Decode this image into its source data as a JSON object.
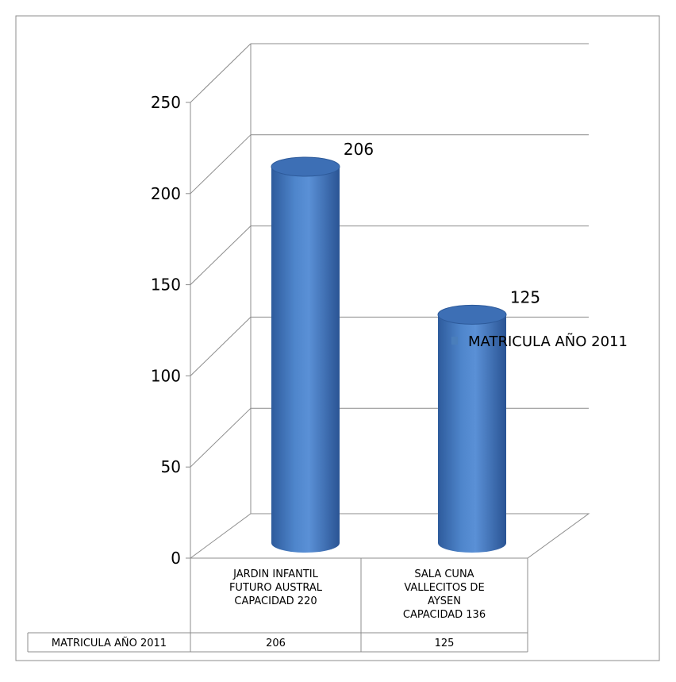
{
  "chart_data": {
    "type": "bar",
    "style": "3d-cylinder",
    "categories": [
      [
        "JARDIN INFANTIL",
        "FUTURO AUSTRAL",
        "CAPACIDAD 220"
      ],
      [
        "SALA CUNA",
        "VALLECITOS DE",
        "AYSEN",
        "CAPACIDAD 136"
      ]
    ],
    "series": [
      {
        "name": "MATRICULA AÑO 2011",
        "values": [
          206,
          125
        ],
        "color": "#4a7ebb"
      }
    ],
    "data_labels": [
      "206",
      "125"
    ],
    "ylim": [
      0,
      250
    ],
    "yticks": [
      "0",
      "50",
      "100",
      "150",
      "200",
      "250"
    ],
    "grid": true,
    "legend": "right",
    "data_table": true
  }
}
